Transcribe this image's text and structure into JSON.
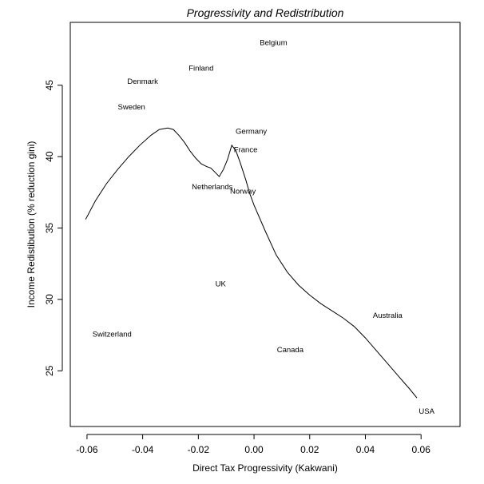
{
  "chart_data": {
    "type": "scatter",
    "title": "Progressivity and Redistribution",
    "xlabel": "Direct Tax Progressivity (Kakwani)",
    "ylabel": "Income Redistibution (% reduction gini)",
    "xlim": [
      -0.066,
      0.074
    ],
    "ylim": [
      21.1,
      49.4
    ],
    "xticks": [
      -0.06,
      -0.04,
      -0.02,
      0.0,
      0.02,
      0.04,
      0.06
    ],
    "xtick_labels": [
      "-0.06",
      "-0.04",
      "-0.02",
      "0.00",
      "0.02",
      "0.04",
      "0.06"
    ],
    "yticks": [
      25,
      30,
      35,
      40,
      45
    ],
    "ytick_labels": [
      "25",
      "30",
      "35",
      "40",
      "45"
    ],
    "grid": false,
    "points": [
      {
        "label": "Belgium",
        "x": 0.007,
        "y": 48.0
      },
      {
        "label": "Finland",
        "x": -0.019,
        "y": 46.2
      },
      {
        "label": "Denmark",
        "x": -0.04,
        "y": 45.3
      },
      {
        "label": "Sweden",
        "x": -0.044,
        "y": 43.5
      },
      {
        "label": "Germany",
        "x": -0.001,
        "y": 41.8
      },
      {
        "label": "France",
        "x": -0.003,
        "y": 40.5
      },
      {
        "label": "Netherlands",
        "x": -0.015,
        "y": 37.9
      },
      {
        "label": "Norway",
        "x": -0.004,
        "y": 37.6
      },
      {
        "label": "UK",
        "x": -0.012,
        "y": 31.1
      },
      {
        "label": "Australia",
        "x": 0.048,
        "y": 28.9
      },
      {
        "label": "Switzerland",
        "x": -0.051,
        "y": 27.6
      },
      {
        "label": "Canada",
        "x": 0.013,
        "y": 26.5
      },
      {
        "label": "USA",
        "x": 0.062,
        "y": 22.2
      }
    ],
    "smooth_line": {
      "x": [
        -0.0605,
        -0.057,
        -0.053,
        -0.049,
        -0.045,
        -0.041,
        -0.037,
        -0.034,
        -0.031,
        -0.029,
        -0.027,
        -0.025,
        -0.023,
        -0.021,
        -0.019,
        -0.017,
        -0.0155,
        -0.014,
        -0.0125,
        -0.011,
        -0.0095,
        -0.008,
        -0.0065,
        -0.005,
        -0.003,
        -0.0015,
        0.0,
        0.004,
        0.008,
        0.012,
        0.016,
        0.02,
        0.024,
        0.028,
        0.032,
        0.036,
        0.04,
        0.044,
        0.048,
        0.052,
        0.056,
        0.0585
      ],
      "y": [
        35.6,
        36.9,
        38.1,
        39.1,
        40.0,
        40.8,
        41.5,
        41.9,
        42.0,
        41.9,
        41.5,
        41.0,
        40.4,
        39.9,
        39.5,
        39.3,
        39.2,
        38.9,
        38.6,
        39.1,
        39.8,
        40.8,
        40.4,
        39.6,
        38.4,
        37.4,
        36.6,
        34.8,
        33.1,
        31.9,
        31.0,
        30.3,
        29.7,
        29.2,
        28.7,
        28.1,
        27.3,
        26.4,
        25.5,
        24.6,
        23.7,
        23.1
      ]
    }
  }
}
